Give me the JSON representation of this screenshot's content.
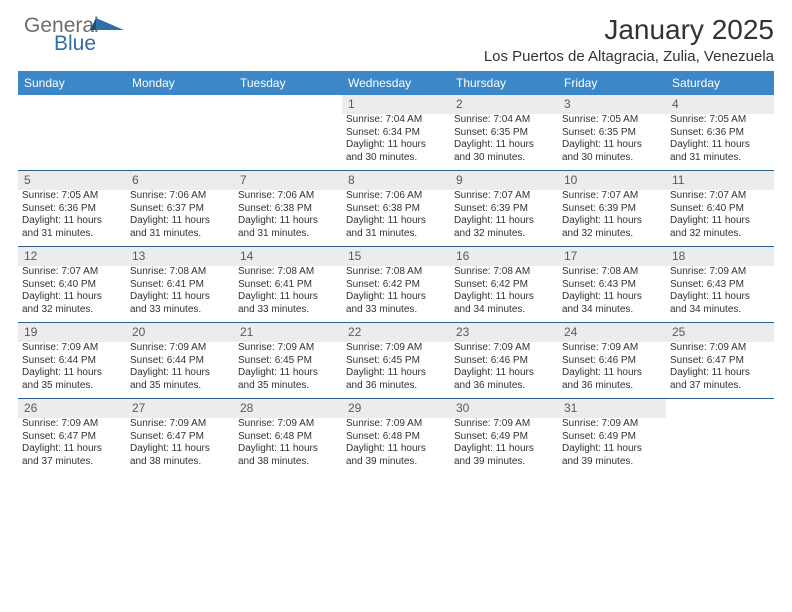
{
  "brand": {
    "part1": "General",
    "part2": "Blue"
  },
  "colors": {
    "header_bg": "#3c87c7",
    "header_text": "#ffffff",
    "daynum_bg": "#ececec",
    "daynum_text": "#5a5a5a",
    "row_border": "#2f5f8f",
    "body_text": "#333333",
    "logo_gray": "#6d6d6d",
    "logo_blue": "#2f6fa7",
    "page_bg": "#ffffff"
  },
  "typography": {
    "title_fontsize": 28,
    "location_fontsize": 15,
    "header_fontsize": 12,
    "daynum_fontsize": 12,
    "cell_fontsize": 10
  },
  "title": "January 2025",
  "location": "Los Puertos de Altagracia, Zulia, Venezuela",
  "weekdays": [
    "Sunday",
    "Monday",
    "Tuesday",
    "Wednesday",
    "Thursday",
    "Friday",
    "Saturday"
  ],
  "weeks": [
    [
      null,
      null,
      null,
      {
        "n": "1",
        "sr": "Sunrise: 7:04 AM",
        "ss": "Sunset: 6:34 PM",
        "d1": "Daylight: 11 hours",
        "d2": "and 30 minutes."
      },
      {
        "n": "2",
        "sr": "Sunrise: 7:04 AM",
        "ss": "Sunset: 6:35 PM",
        "d1": "Daylight: 11 hours",
        "d2": "and 30 minutes."
      },
      {
        "n": "3",
        "sr": "Sunrise: 7:05 AM",
        "ss": "Sunset: 6:35 PM",
        "d1": "Daylight: 11 hours",
        "d2": "and 30 minutes."
      },
      {
        "n": "4",
        "sr": "Sunrise: 7:05 AM",
        "ss": "Sunset: 6:36 PM",
        "d1": "Daylight: 11 hours",
        "d2": "and 31 minutes."
      }
    ],
    [
      {
        "n": "5",
        "sr": "Sunrise: 7:05 AM",
        "ss": "Sunset: 6:36 PM",
        "d1": "Daylight: 11 hours",
        "d2": "and 31 minutes."
      },
      {
        "n": "6",
        "sr": "Sunrise: 7:06 AM",
        "ss": "Sunset: 6:37 PM",
        "d1": "Daylight: 11 hours",
        "d2": "and 31 minutes."
      },
      {
        "n": "7",
        "sr": "Sunrise: 7:06 AM",
        "ss": "Sunset: 6:38 PM",
        "d1": "Daylight: 11 hours",
        "d2": "and 31 minutes."
      },
      {
        "n": "8",
        "sr": "Sunrise: 7:06 AM",
        "ss": "Sunset: 6:38 PM",
        "d1": "Daylight: 11 hours",
        "d2": "and 31 minutes."
      },
      {
        "n": "9",
        "sr": "Sunrise: 7:07 AM",
        "ss": "Sunset: 6:39 PM",
        "d1": "Daylight: 11 hours",
        "d2": "and 32 minutes."
      },
      {
        "n": "10",
        "sr": "Sunrise: 7:07 AM",
        "ss": "Sunset: 6:39 PM",
        "d1": "Daylight: 11 hours",
        "d2": "and 32 minutes."
      },
      {
        "n": "11",
        "sr": "Sunrise: 7:07 AM",
        "ss": "Sunset: 6:40 PM",
        "d1": "Daylight: 11 hours",
        "d2": "and 32 minutes."
      }
    ],
    [
      {
        "n": "12",
        "sr": "Sunrise: 7:07 AM",
        "ss": "Sunset: 6:40 PM",
        "d1": "Daylight: 11 hours",
        "d2": "and 32 minutes."
      },
      {
        "n": "13",
        "sr": "Sunrise: 7:08 AM",
        "ss": "Sunset: 6:41 PM",
        "d1": "Daylight: 11 hours",
        "d2": "and 33 minutes."
      },
      {
        "n": "14",
        "sr": "Sunrise: 7:08 AM",
        "ss": "Sunset: 6:41 PM",
        "d1": "Daylight: 11 hours",
        "d2": "and 33 minutes."
      },
      {
        "n": "15",
        "sr": "Sunrise: 7:08 AM",
        "ss": "Sunset: 6:42 PM",
        "d1": "Daylight: 11 hours",
        "d2": "and 33 minutes."
      },
      {
        "n": "16",
        "sr": "Sunrise: 7:08 AM",
        "ss": "Sunset: 6:42 PM",
        "d1": "Daylight: 11 hours",
        "d2": "and 34 minutes."
      },
      {
        "n": "17",
        "sr": "Sunrise: 7:08 AM",
        "ss": "Sunset: 6:43 PM",
        "d1": "Daylight: 11 hours",
        "d2": "and 34 minutes."
      },
      {
        "n": "18",
        "sr": "Sunrise: 7:09 AM",
        "ss": "Sunset: 6:43 PM",
        "d1": "Daylight: 11 hours",
        "d2": "and 34 minutes."
      }
    ],
    [
      {
        "n": "19",
        "sr": "Sunrise: 7:09 AM",
        "ss": "Sunset: 6:44 PM",
        "d1": "Daylight: 11 hours",
        "d2": "and 35 minutes."
      },
      {
        "n": "20",
        "sr": "Sunrise: 7:09 AM",
        "ss": "Sunset: 6:44 PM",
        "d1": "Daylight: 11 hours",
        "d2": "and 35 minutes."
      },
      {
        "n": "21",
        "sr": "Sunrise: 7:09 AM",
        "ss": "Sunset: 6:45 PM",
        "d1": "Daylight: 11 hours",
        "d2": "and 35 minutes."
      },
      {
        "n": "22",
        "sr": "Sunrise: 7:09 AM",
        "ss": "Sunset: 6:45 PM",
        "d1": "Daylight: 11 hours",
        "d2": "and 36 minutes."
      },
      {
        "n": "23",
        "sr": "Sunrise: 7:09 AM",
        "ss": "Sunset: 6:46 PM",
        "d1": "Daylight: 11 hours",
        "d2": "and 36 minutes."
      },
      {
        "n": "24",
        "sr": "Sunrise: 7:09 AM",
        "ss": "Sunset: 6:46 PM",
        "d1": "Daylight: 11 hours",
        "d2": "and 36 minutes."
      },
      {
        "n": "25",
        "sr": "Sunrise: 7:09 AM",
        "ss": "Sunset: 6:47 PM",
        "d1": "Daylight: 11 hours",
        "d2": "and 37 minutes."
      }
    ],
    [
      {
        "n": "26",
        "sr": "Sunrise: 7:09 AM",
        "ss": "Sunset: 6:47 PM",
        "d1": "Daylight: 11 hours",
        "d2": "and 37 minutes."
      },
      {
        "n": "27",
        "sr": "Sunrise: 7:09 AM",
        "ss": "Sunset: 6:47 PM",
        "d1": "Daylight: 11 hours",
        "d2": "and 38 minutes."
      },
      {
        "n": "28",
        "sr": "Sunrise: 7:09 AM",
        "ss": "Sunset: 6:48 PM",
        "d1": "Daylight: 11 hours",
        "d2": "and 38 minutes."
      },
      {
        "n": "29",
        "sr": "Sunrise: 7:09 AM",
        "ss": "Sunset: 6:48 PM",
        "d1": "Daylight: 11 hours",
        "d2": "and 39 minutes."
      },
      {
        "n": "30",
        "sr": "Sunrise: 7:09 AM",
        "ss": "Sunset: 6:49 PM",
        "d1": "Daylight: 11 hours",
        "d2": "and 39 minutes."
      },
      {
        "n": "31",
        "sr": "Sunrise: 7:09 AM",
        "ss": "Sunset: 6:49 PM",
        "d1": "Daylight: 11 hours",
        "d2": "and 39 minutes."
      },
      null
    ]
  ]
}
